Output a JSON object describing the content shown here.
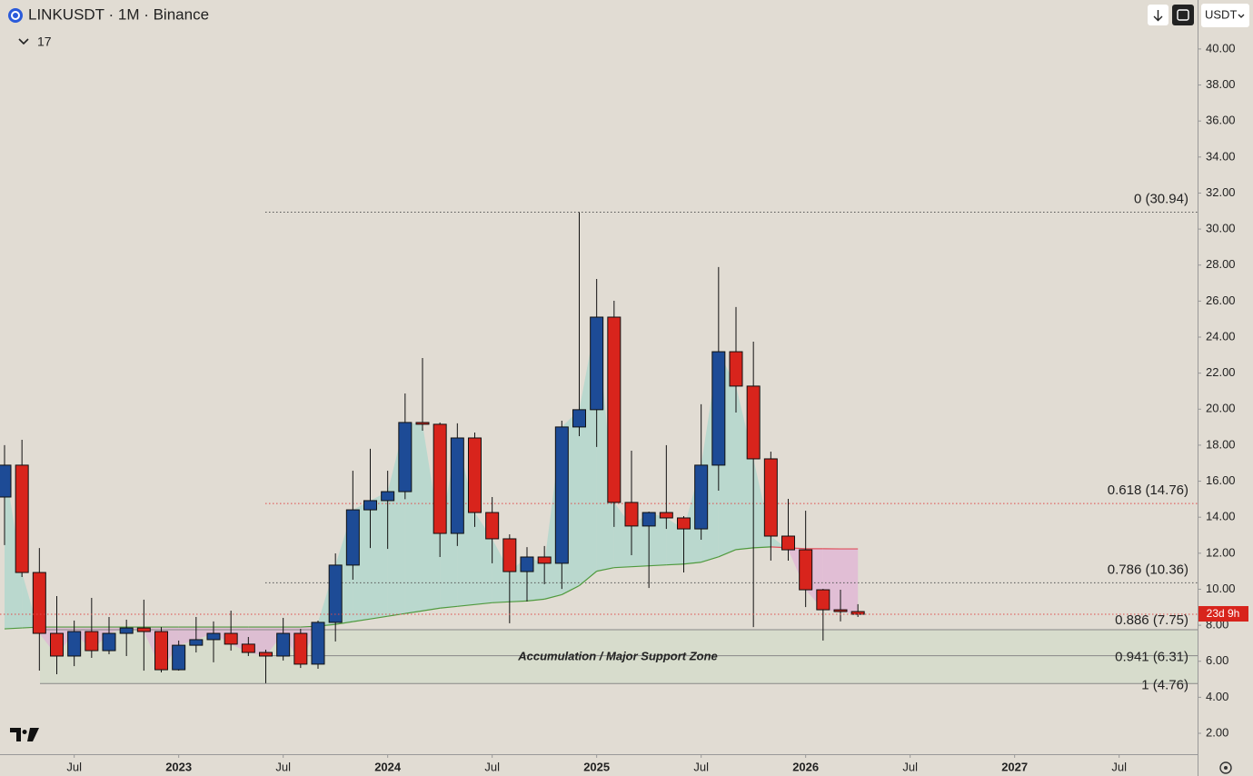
{
  "header": {
    "symbol": "LINKUSDT · 1M · Binance",
    "indicator_count": "17",
    "currency": "USDT",
    "countdown": "23d 9h"
  },
  "chart_data": {
    "type": "candlestick",
    "x": [
      "2022-03",
      "2022-04",
      "2022-05",
      "2022-06",
      "2022-07",
      "2022-08",
      "2022-09",
      "2022-10",
      "2022-11",
      "2022-12",
      "2023-01",
      "2023-02",
      "2023-03",
      "2023-04",
      "2023-05",
      "2023-06",
      "2023-07",
      "2023-08",
      "2023-09",
      "2023-10",
      "2023-11",
      "2023-12",
      "2024-01",
      "2024-02",
      "2024-03",
      "2024-04",
      "2024-05",
      "2024-06",
      "2024-07",
      "2024-08",
      "2024-09",
      "2024-10",
      "2024-11",
      "2024-12",
      "2025-01",
      "2025-02",
      "2025-03",
      "2025-04",
      "2025-05",
      "2025-06",
      "2025-07",
      "2025-08",
      "2025-09",
      "2025-10",
      "2025-11",
      "2025-12",
      "2026-01",
      "2026-02",
      "2026-03",
      "2026-04"
    ],
    "open": [
      15.12,
      16.89,
      10.93,
      7.55,
      6.29,
      7.65,
      6.59,
      7.55,
      7.85,
      7.65,
      5.53,
      6.89,
      7.2,
      7.55,
      6.95,
      6.49,
      6.29,
      7.55,
      5.84,
      8.16,
      11.34,
      14.41,
      14.92,
      15.42,
      19.26,
      19.16,
      13.1,
      18.4,
      14.26,
      12.8,
      10.98,
      11.79,
      11.44,
      19.01,
      19.97,
      25.11,
      14.82,
      13.51,
      14.26,
      13.96,
      13.35,
      16.89,
      23.19,
      21.28,
      17.24,
      12.95,
      12.19,
      9.97,
      8.86,
      8.76
    ],
    "high": [
      18.0,
      18.3,
      12.29,
      9.62,
      8.26,
      9.52,
      8.46,
      8.31,
      9.42,
      7.9,
      7.15,
      8.46,
      8.21,
      8.81,
      7.35,
      6.64,
      8.41,
      7.8,
      8.26,
      11.99,
      16.58,
      17.8,
      16.58,
      20.87,
      22.84,
      19.26,
      19.21,
      18.7,
      15.12,
      13.05,
      12.34,
      12.4,
      19.36,
      30.94,
      27.23,
      26.02,
      17.69,
      14.31,
      18.0,
      14.06,
      20.27,
      27.89,
      25.67,
      23.75,
      17.64,
      15.02,
      14.36,
      10.02,
      9.97,
      9.17
    ],
    "low": [
      12.45,
      10.68,
      5.48,
      5.28,
      5.73,
      6.19,
      6.39,
      6.29,
      5.48,
      5.38,
      5.48,
      6.49,
      5.94,
      6.59,
      6.29,
      4.78,
      6.04,
      5.63,
      5.58,
      7.1,
      10.53,
      12.29,
      12.24,
      15.0,
      18.8,
      11.79,
      12.4,
      13.46,
      11.44,
      8.11,
      9.32,
      10.28,
      10.02,
      18.5,
      17.9,
      13.46,
      11.89,
      10.07,
      13.35,
      10.93,
      12.75,
      15.47,
      19.81,
      7.9,
      11.59,
      11.59,
      9.01,
      7.15,
      8.21,
      8.46
    ],
    "close": [
      16.89,
      10.93,
      7.55,
      6.29,
      7.65,
      6.59,
      7.55,
      7.85,
      7.65,
      5.53,
      6.89,
      7.2,
      7.55,
      6.95,
      6.49,
      6.29,
      7.55,
      5.84,
      8.16,
      11.34,
      14.41,
      14.92,
      15.42,
      19.26,
      19.16,
      13.1,
      18.4,
      14.26,
      12.8,
      10.98,
      11.79,
      11.44,
      19.01,
      19.97,
      25.11,
      14.82,
      13.51,
      14.26,
      13.96,
      13.35,
      16.89,
      23.19,
      21.28,
      17.24,
      12.95,
      12.19,
      9.97,
      8.86,
      8.76,
      8.61
    ],
    "up_color": "#1d4b96",
    "down_color": "#d8241c",
    "ma": {
      "color": "#4f9a3e",
      "below_color": "#e0505a",
      "values": [
        7.8,
        7.85,
        7.9,
        7.9,
        7.9,
        7.9,
        7.9,
        7.9,
        7.9,
        7.9,
        7.9,
        7.9,
        7.9,
        7.9,
        7.9,
        7.9,
        7.9,
        7.9,
        7.95,
        8.05,
        8.2,
        8.35,
        8.5,
        8.65,
        8.8,
        8.95,
        9.05,
        9.15,
        9.25,
        9.3,
        9.35,
        9.45,
        9.7,
        10.2,
        11.0,
        11.2,
        11.25,
        11.3,
        11.35,
        11.4,
        11.5,
        11.8,
        12.2,
        12.3,
        12.35,
        12.3,
        12.25,
        12.25,
        12.24,
        12.24
      ]
    },
    "ylim": [
      0.84,
      42.72
    ],
    "yticks": [
      {
        "value": 2,
        "label": "2.00"
      },
      {
        "value": 4,
        "label": "4.00"
      },
      {
        "value": 6,
        "label": "6.00"
      },
      {
        "value": 8,
        "label": "8.00"
      },
      {
        "value": 10,
        "label": "10.00"
      },
      {
        "value": 12,
        "label": "12.00"
      },
      {
        "value": 14,
        "label": "14.00"
      },
      {
        "value": 16,
        "label": "16.00"
      },
      {
        "value": 18,
        "label": "18.00"
      },
      {
        "value": 20,
        "label": "20.00"
      },
      {
        "value": 22,
        "label": "22.00"
      },
      {
        "value": 24,
        "label": "24.00"
      },
      {
        "value": 26,
        "label": "26.00"
      },
      {
        "value": 28,
        "label": "28.00"
      },
      {
        "value": 30,
        "label": "30.00"
      },
      {
        "value": 32,
        "label": "32.00"
      },
      {
        "value": 34,
        "label": "34.00"
      },
      {
        "value": 36,
        "label": "36.00"
      },
      {
        "value": 38,
        "label": "38.00"
      },
      {
        "value": 40,
        "label": "40.00"
      }
    ],
    "xticks": [
      {
        "value": "2022-07",
        "label": "Jul"
      },
      {
        "value": "2023-01",
        "label": "2023"
      },
      {
        "value": "2023-07",
        "label": "Jul"
      },
      {
        "value": "2024-01",
        "label": "2024"
      },
      {
        "value": "2024-07",
        "label": "Jul"
      },
      {
        "value": "2025-01",
        "label": "2025"
      },
      {
        "value": "2025-07",
        "label": "Jul"
      },
      {
        "value": "2026-01",
        "label": "2026"
      },
      {
        "value": "2026-07",
        "label": "Jul"
      },
      {
        "value": "2027-01",
        "label": "2027"
      },
      {
        "value": "2027-07",
        "label": "Jul"
      }
    ],
    "levels": [
      {
        "value": 30.94,
        "label": "0 (30.94)",
        "color": "#222222"
      },
      {
        "value": 14.76,
        "label": "0.618 (14.76)",
        "color": "#e04a4a"
      },
      {
        "value": 10.36,
        "label": "0.786 (10.36)",
        "color": "#222222"
      },
      {
        "value": 7.75,
        "label": "0.886 (7.75)",
        "color": "#e04a4a"
      },
      {
        "value": 6.31,
        "label": "0.941 (6.31)",
        "color": "#222222"
      },
      {
        "value": 4.76,
        "label": "1 (4.76)",
        "color": "#222222"
      }
    ],
    "annotation": "Accumulation / Major Support Zone"
  }
}
